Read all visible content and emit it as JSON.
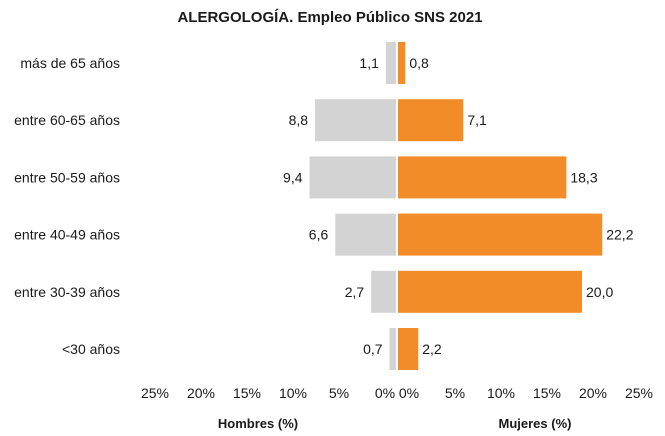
{
  "chart_data": {
    "type": "bar",
    "orientation": "horizontal-population-pyramid",
    "title": "ALERGOLOGÍA. Empleo Público SNS 2021",
    "categories": [
      "más de 65 años",
      "entre 60-65 años",
      "entre 50-59 años",
      "entre 40-49 años",
      "entre 30-39 años",
      "<30  años"
    ],
    "series": [
      {
        "name": "Hombres (%)",
        "side": "left",
        "color": "#d3d3d3",
        "values": [
          1.1,
          8.8,
          9.4,
          6.6,
          2.7,
          0.7
        ],
        "labels": [
          "1,1",
          "8,8",
          "9,4",
          "6,6",
          "2,7",
          "0,7"
        ]
      },
      {
        "name": "Mujeres (%)",
        "side": "right",
        "color": "#f28c28",
        "values": [
          0.8,
          7.1,
          18.3,
          22.2,
          20.0,
          2.2
        ],
        "labels": [
          "0,8",
          "7,1",
          "18,3",
          "22,2",
          "20,0",
          "2,2"
        ]
      }
    ],
    "left_axis": {
      "label": "Hombres (%)",
      "range": [
        0,
        25
      ],
      "ticks": [
        25,
        20,
        15,
        10,
        5,
        0
      ],
      "tick_labels": [
        "25%",
        "20%",
        "15%",
        "10%",
        "5%",
        "0%"
      ]
    },
    "right_axis": {
      "label": "Mujeres (%)",
      "range": [
        0,
        25
      ],
      "ticks": [
        0,
        5,
        10,
        15,
        20,
        25
      ],
      "tick_labels": [
        "0%",
        "5%",
        "10%",
        "15%",
        "20%",
        "25%"
      ]
    },
    "grid": false,
    "legend": "none"
  }
}
